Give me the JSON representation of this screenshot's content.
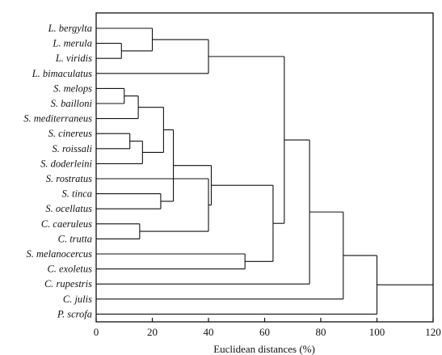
{
  "chart_data": {
    "type": "dendrogram",
    "xlabel": "Euclidean distances (%)",
    "xlim": [
      0,
      120
    ],
    "xticks": [
      0,
      20,
      40,
      60,
      80,
      100,
      120
    ],
    "leaves": [
      "L. bergylta",
      "L. merula",
      "L. viridis",
      "L. bimaculatus",
      "S. melops",
      "S. bailloni",
      "S. mediterraneus",
      "S. cinereus",
      "S. roissali",
      "S. doderleini",
      "S. rostratus",
      "S. tinca",
      "S. ocellatus",
      "C. caeruleus",
      "C. trutta",
      "S. melanocercus",
      "C. exoletus",
      "C. rupestris",
      "C. julis",
      "P. scrofa"
    ],
    "merges": [
      {
        "a": 1,
        "b": 2,
        "height": 9
      },
      {
        "a": 0,
        "b": "m0",
        "height": 20
      },
      {
        "a": "m1",
        "b": 3,
        "height": 40
      },
      {
        "a": 4,
        "b": 5,
        "height": 10
      },
      {
        "a": "m3",
        "b": 6,
        "height": 15
      },
      {
        "a": 7,
        "b": 8,
        "height": 12
      },
      {
        "a": "m5",
        "b": 9,
        "height": 16.5
      },
      {
        "a": "m4",
        "b": "m6",
        "height": 24
      },
      {
        "a": 11,
        "b": 12,
        "height": 23
      },
      {
        "a": "m7",
        "b": "m8",
        "height": 27.5
      },
      {
        "a": 13,
        "b": 14,
        "height": 15.5
      },
      {
        "a": 10,
        "b": "m10",
        "height": 40
      },
      {
        "a": "m9",
        "b": "m11",
        "height": 41
      },
      {
        "a": 15,
        "b": 16,
        "height": 53
      },
      {
        "a": "m12",
        "b": "m13",
        "height": 63
      },
      {
        "a": "m2",
        "b": "m14",
        "height": 67
      },
      {
        "a": "m15",
        "b": 17,
        "height": 76
      },
      {
        "a": "m16",
        "b": 18,
        "height": 88
      },
      {
        "a": "m17",
        "b": 19,
        "height": 100
      }
    ]
  }
}
